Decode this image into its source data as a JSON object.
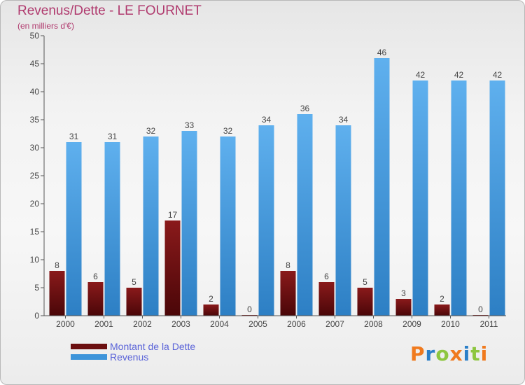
{
  "header": {
    "title": "Revenus/Dette - LE FOURNET",
    "subtitle": "(en milliers d'€)"
  },
  "legend": {
    "items": [
      {
        "label": "Montant de la Dette",
        "color": "#6b0f10"
      },
      {
        "label": "Revenus",
        "color": "#3d94da"
      }
    ]
  },
  "logo": {
    "letters": [
      {
        "ch": "P",
        "color": "#f07a1e"
      },
      {
        "ch": "r",
        "color": "#2b7fc8"
      },
      {
        "ch": "o",
        "color": "#8dc63f"
      },
      {
        "ch": "x",
        "color": "#f07a1e"
      },
      {
        "ch": "i",
        "color": "#2b7fc8"
      },
      {
        "ch": "t",
        "color": "#8dc63f"
      },
      {
        "ch": "i",
        "color": "#f07a1e"
      }
    ]
  },
  "chart_data": {
    "type": "bar",
    "categories": [
      "2000",
      "2001",
      "2002",
      "2003",
      "2004",
      "2005",
      "2006",
      "2007",
      "2008",
      "2009",
      "2010",
      "2011"
    ],
    "series": [
      {
        "name": "Montant de la Dette",
        "values": [
          8,
          6,
          5,
          17,
          2,
          0,
          8,
          6,
          5,
          3,
          2,
          0
        ],
        "color": "#6b0f10"
      },
      {
        "name": "Revenus",
        "values": [
          31,
          31,
          32,
          33,
          32,
          34,
          36,
          34,
          46,
          42,
          42,
          42
        ],
        "color": "#3d94da"
      }
    ],
    "title": "Revenus/Dette - LE FOURNET",
    "ylabel": "(en milliers d'€)",
    "xlabel": "",
    "ylim": [
      0,
      50
    ],
    "yticks": [
      0,
      5,
      10,
      15,
      20,
      25,
      30,
      35,
      40,
      45,
      50
    ],
    "grid": false,
    "legend_position": "bottom-left"
  }
}
